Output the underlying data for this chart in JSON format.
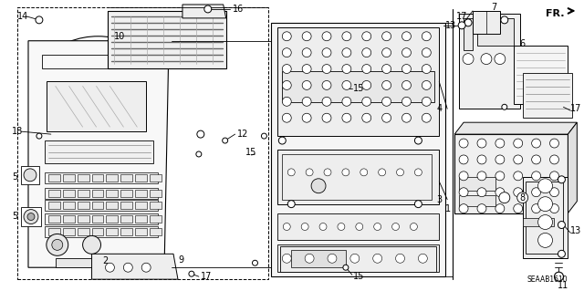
{
  "part_number": "SEAAB1610",
  "bg_color": "#ffffff",
  "line_color": "#000000",
  "figsize": [
    6.4,
    3.19
  ],
  "dpi": 100,
  "label_fontsize": 7,
  "small_fontsize": 6
}
